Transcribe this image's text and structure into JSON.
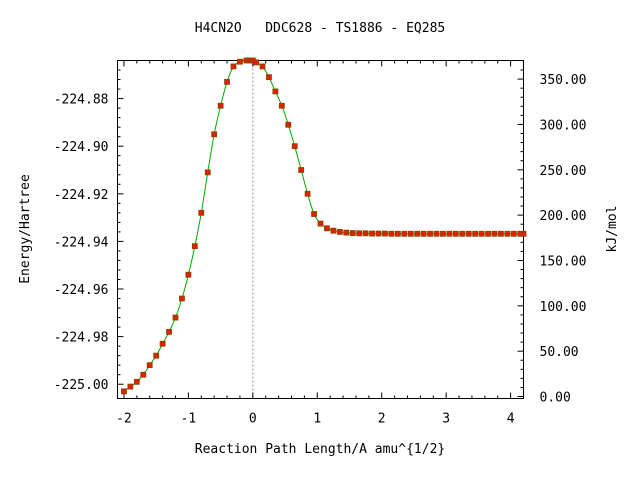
{
  "chart_data": {
    "type": "line",
    "title": "H4CN2O   DDC628 - TS1886 - EQ285",
    "xlabel": "Reaction Path Length/A amu^{1/2}",
    "ylabel": "Energy/Hartree",
    "y2label": "kJ/mol",
    "xlim": [
      -2.1,
      4.2
    ],
    "ylim": [
      -225.006,
      -224.864
    ],
    "y2lim": [
      -2.2,
      370.5
    ],
    "x_ticks": [
      -2,
      -1,
      0,
      1,
      2,
      3,
      4
    ],
    "x_tick_labels": [
      "-2",
      "-1",
      "0",
      "1",
      "2",
      "3",
      "4"
    ],
    "y_ticks": [
      -225.0,
      -224.98,
      -224.96,
      -224.94,
      -224.92,
      -224.9,
      -224.88
    ],
    "y_tick_labels": [
      "-225.00",
      "-224.98",
      "-224.96",
      "-224.94",
      "-224.92",
      "-224.90",
      "-224.88"
    ],
    "y2_ticks": [
      0,
      50,
      100,
      150,
      200,
      250,
      300,
      350
    ],
    "y2_tick_labels": [
      "0.00",
      "50.00",
      "100.00",
      "150.00",
      "200.00",
      "250.00",
      "300.00",
      "350.00"
    ],
    "vline_x": 0,
    "grid": false,
    "colors": {
      "line": "#00aa00",
      "marker_fill": "#dd2200",
      "marker_edge": "#884400",
      "vline": "#999999"
    },
    "series": [
      {
        "x": [
          -2.0,
          -1.9,
          -1.8,
          -1.7,
          -1.6,
          -1.5,
          -1.4,
          -1.3,
          -1.2,
          -1.1,
          -1.0,
          -0.9,
          -0.8,
          -0.7,
          -0.6,
          -0.5,
          -0.4,
          -0.3,
          -0.2,
          -0.1,
          -0.05,
          0.0,
          0.05,
          0.15,
          0.25,
          0.35,
          0.45,
          0.55,
          0.65,
          0.75,
          0.85,
          0.95,
          1.05,
          1.15,
          1.25,
          1.35,
          1.45,
          1.55,
          1.65,
          1.75,
          1.85,
          1.95,
          2.05,
          2.15,
          2.25,
          2.35,
          2.45,
          2.55,
          2.65,
          2.75,
          2.85,
          2.95,
          3.05,
          3.15,
          3.25,
          3.35,
          3.45,
          3.55,
          3.65,
          3.75,
          3.85,
          3.95,
          4.05,
          4.15,
          4.2
        ],
        "y": [
          -225.003,
          -225.001,
          -224.999,
          -224.996,
          -224.992,
          -224.988,
          -224.983,
          -224.978,
          -224.972,
          -224.964,
          -224.954,
          -224.942,
          -224.928,
          -224.911,
          -224.895,
          -224.883,
          -224.873,
          -224.8665,
          -224.8645,
          -224.864,
          -224.864,
          -224.864,
          -224.8648,
          -224.8665,
          -224.871,
          -224.877,
          -224.883,
          -224.891,
          -224.9,
          -224.91,
          -224.92,
          -224.9285,
          -224.9325,
          -224.9345,
          -224.9355,
          -224.936,
          -224.9363,
          -224.9365,
          -224.9366,
          -224.9366,
          -224.9367,
          -224.9367,
          -224.9367,
          -224.9368,
          -224.9368,
          -224.9368,
          -224.9368,
          -224.9368,
          -224.9368,
          -224.9368,
          -224.9368,
          -224.9368,
          -224.9368,
          -224.9368,
          -224.9368,
          -224.9368,
          -224.9368,
          -224.9368,
          -224.9368,
          -224.9368,
          -224.9368,
          -224.9368,
          -224.9368,
          -224.9368,
          -224.9368
        ]
      }
    ]
  }
}
